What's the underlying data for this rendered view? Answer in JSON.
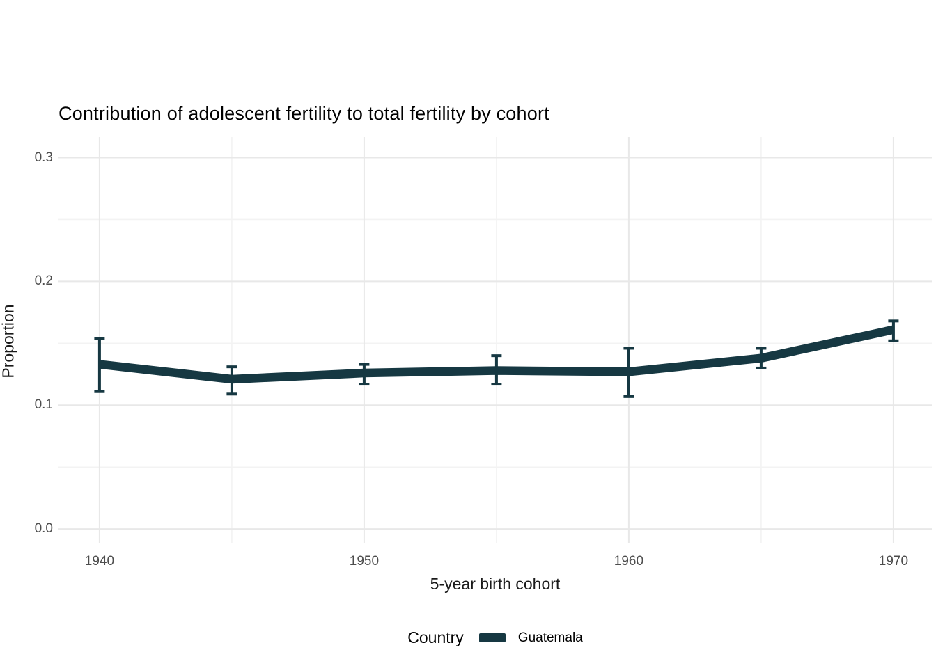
{
  "chart_data": {
    "type": "line",
    "title": "Contribution of adolescent fertility to total fertility by cohort",
    "xlabel": "5-year birth cohort",
    "ylabel": "Proportion",
    "x": [
      1940,
      1945,
      1950,
      1955,
      1960,
      1965,
      1970
    ],
    "series": [
      {
        "name": "Guatemala",
        "color": "#163842",
        "values": [
          0.133,
          0.121,
          0.126,
          0.128,
          0.127,
          0.138,
          0.161
        ],
        "ci_lower": [
          0.111,
          0.109,
          0.117,
          0.117,
          0.107,
          0.13,
          0.152
        ],
        "ci_upper": [
          0.154,
          0.131,
          0.133,
          0.14,
          0.146,
          0.146,
          0.168
        ]
      }
    ],
    "x_ticks": [
      1940,
      1950,
      1960,
      1970
    ],
    "x_tick_labels": [
      "1940",
      "1950",
      "1960",
      "1970"
    ],
    "x_minor_ticks": [
      1945,
      1955,
      1965
    ],
    "y_ticks": [
      0.0,
      0.1,
      0.2,
      0.3
    ],
    "y_tick_labels": [
      "0.0",
      "0.1",
      "0.2",
      "0.3"
    ],
    "y_minor_ticks": [
      0.05,
      0.15,
      0.25
    ],
    "xlim": [
      1938.45,
      1971.45
    ],
    "ylim": [
      -0.0117,
      0.3166
    ],
    "grid": true,
    "legend_position": "bottom",
    "legend": {
      "title": "Country",
      "entries": [
        {
          "label": "Guatemala",
          "color": "#163842"
        }
      ]
    }
  },
  "colors": {
    "background": "#ffffff",
    "grid_major": "#e8e8e8",
    "grid_minor": "#f3f3f3",
    "tick_label": "#4d4d4d",
    "title_text": "#000000"
  }
}
